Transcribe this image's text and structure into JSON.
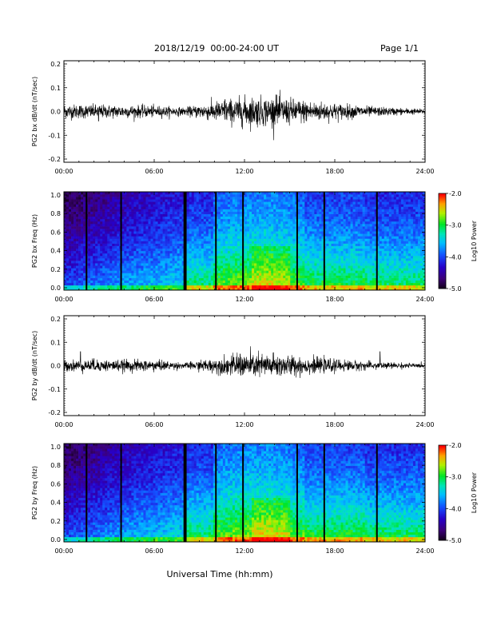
{
  "header": {
    "title": "2018/12/19  00:00-24:00 UT",
    "page": "Page 1/1"
  },
  "chart_data": [
    {
      "type": "line",
      "ylabel": "PG2 bx dB/dt (nT/sec)",
      "xlim": [
        "00:00",
        "24:00"
      ],
      "x_ticks": [
        "00:00",
        "06:00",
        "12:00",
        "18:00",
        "24:00"
      ],
      "ylim": [
        -0.2,
        0.2
      ],
      "y_ticks": [
        "-0.2",
        "-0.1",
        "0.0",
        "0.1",
        "0.2"
      ],
      "activity_envelope": [
        {
          "hour": 0,
          "amplitude": 0.015
        },
        {
          "hour": 6,
          "amplitude": 0.012
        },
        {
          "hour": 8,
          "amplitude": 0.008
        },
        {
          "hour": 10,
          "amplitude": 0.02
        },
        {
          "hour": 12,
          "amplitude": 0.03
        },
        {
          "hour": 14,
          "amplitude": 0.03
        },
        {
          "hour": 17,
          "amplitude": 0.02
        },
        {
          "hour": 20.5,
          "amplitude": 0.01
        },
        {
          "hour": 24,
          "amplitude": 0.005
        }
      ],
      "spikes": [
        {
          "hour": 14.1,
          "value": 0.07
        },
        {
          "hour": 10.7,
          "value": 0.05
        },
        {
          "hour": 2.3,
          "value": -0.04
        }
      ]
    },
    {
      "type": "heatmap",
      "ylabel": "PG2 bx Freq (Hz)",
      "xlim": [
        "00:00",
        "24:00"
      ],
      "x_ticks": [
        "00:00",
        "06:00",
        "12:00",
        "18:00",
        "24:00"
      ],
      "ylim": [
        0.0,
        1.0
      ],
      "y_ticks": [
        "0.0",
        "0.2",
        "0.4",
        "0.6",
        "0.8",
        "1.0"
      ],
      "colorbar": {
        "label": "Log10 Power",
        "range": [
          -5.0,
          -2.0
        ],
        "ticks": [
          "-2.0",
          "-3.0",
          "-4.0",
          "-5.0"
        ],
        "colormap": "rainbow (black-purple-blue-cyan-green-yellow-red)"
      },
      "data_gaps_hours": [
        1.5,
        3.8,
        8.0,
        8.1,
        10.1,
        11.9,
        15.5,
        17.3,
        20.8
      ]
    },
    {
      "type": "line",
      "ylabel": "PG2 by dB/dt (nT/sec)",
      "xlim": [
        "00:00",
        "24:00"
      ],
      "x_ticks": [
        "00:00",
        "06:00",
        "12:00",
        "18:00",
        "24:00"
      ],
      "ylim": [
        -0.2,
        0.2
      ],
      "y_ticks": [
        "-0.2",
        "-0.1",
        "0.0",
        "0.1",
        "0.2"
      ],
      "activity_envelope": [
        {
          "hour": 0,
          "amplitude": 0.012
        },
        {
          "hour": 6,
          "amplitude": 0.012
        },
        {
          "hour": 8,
          "amplitude": 0.006
        },
        {
          "hour": 10,
          "amplitude": 0.015
        },
        {
          "hour": 12,
          "amplitude": 0.025
        },
        {
          "hour": 14,
          "amplitude": 0.025
        },
        {
          "hour": 17,
          "amplitude": 0.015
        },
        {
          "hour": 20.5,
          "amplitude": 0.008
        },
        {
          "hour": 24,
          "amplitude": 0.004
        }
      ],
      "spikes": [
        {
          "hour": 1.1,
          "value": 0.06
        },
        {
          "hour": 21.0,
          "value": 0.06
        },
        {
          "hour": 11.7,
          "value": 0.05
        },
        {
          "hour": 2.0,
          "value": 0.03
        }
      ]
    },
    {
      "type": "heatmap",
      "ylabel": "PG2 by Freq (Hz)",
      "xlim": [
        "00:00",
        "24:00"
      ],
      "x_ticks": [
        "00:00",
        "06:00",
        "12:00",
        "18:00",
        "24:00"
      ],
      "ylim": [
        0.0,
        1.0
      ],
      "y_ticks": [
        "0.0",
        "0.2",
        "0.4",
        "0.6",
        "0.8",
        "1.0"
      ],
      "colorbar": {
        "label": "Log10 Power",
        "range": [
          -5.0,
          -2.0
        ],
        "ticks": [
          "-2.0",
          "-3.0",
          "-4.0",
          "-5.0"
        ],
        "colormap": "rainbow (black-purple-blue-cyan-green-yellow-red)"
      },
      "data_gaps_hours": [
        1.5,
        3.8,
        8.0,
        8.1,
        10.1,
        11.9,
        15.5,
        17.3,
        20.8
      ]
    }
  ],
  "footer": {
    "xlabel": "Universal Time (hh:mm)"
  }
}
